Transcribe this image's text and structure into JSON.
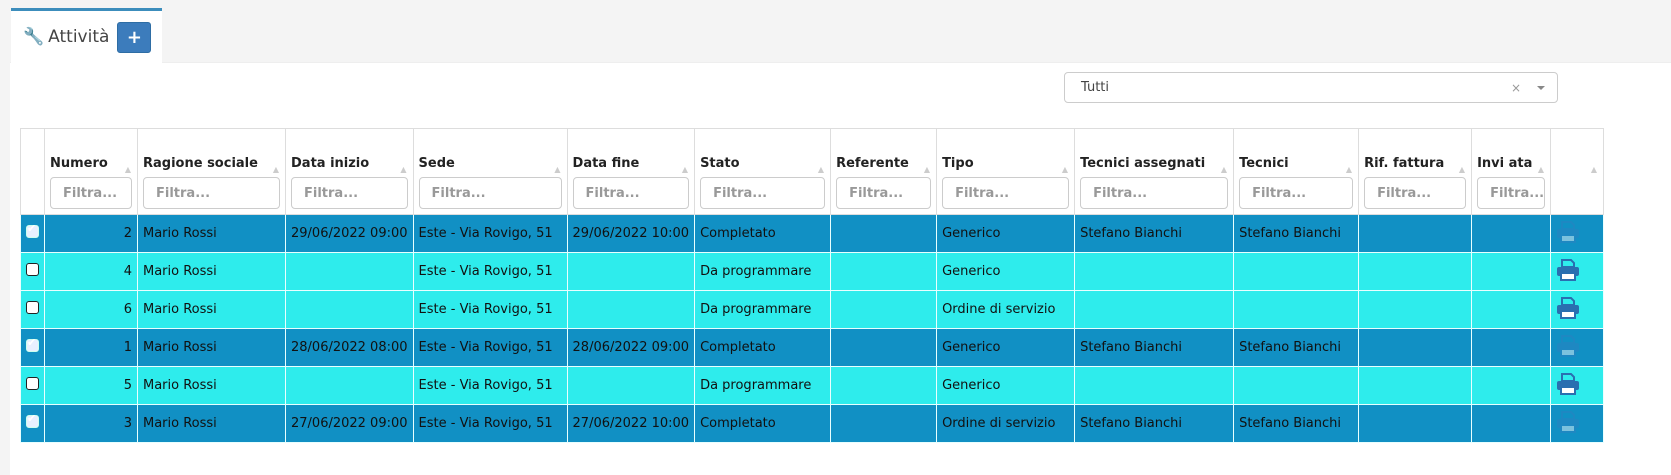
{
  "tab": {
    "title": "Attività",
    "add_label": "+"
  },
  "filter": {
    "value": "Tutti",
    "clear": "×"
  },
  "table": {
    "placeholder": "Filtra...",
    "columns": [
      "Numero",
      "Ragione sociale",
      "Data inizio",
      "Sede",
      "Data fine",
      "Stato",
      "Referente",
      "Tipo",
      "Tecnici assegnati",
      "Tecnici",
      "Rif. fattura",
      "Invi ata"
    ],
    "rows": [
      {
        "selected": true,
        "cells": [
          "2",
          "Mario Rossi",
          "29/06/2022 09:00",
          "Este - Via Rovigo, 51",
          "29/06/2022 10:00",
          "Completato",
          "",
          "Generico",
          "Stefano Bianchi",
          "Stefano Bianchi",
          "",
          ""
        ]
      },
      {
        "selected": false,
        "cells": [
          "4",
          "Mario Rossi",
          "",
          "Este - Via Rovigo, 51",
          "",
          "Da programmare",
          "",
          "Generico",
          "",
          "",
          "",
          ""
        ]
      },
      {
        "selected": false,
        "cells": [
          "6",
          "Mario Rossi",
          "",
          "Este - Via Rovigo, 51",
          "",
          "Da programmare",
          "",
          "Ordine di servizio",
          "",
          "",
          "",
          ""
        ]
      },
      {
        "selected": true,
        "cells": [
          "1",
          "Mario Rossi",
          "28/06/2022 08:00",
          "Este - Via Rovigo, 51",
          "28/06/2022 09:00",
          "Completato",
          "",
          "Generico",
          "Stefano Bianchi",
          "Stefano Bianchi",
          "",
          ""
        ]
      },
      {
        "selected": false,
        "cells": [
          "5",
          "Mario Rossi",
          "",
          "Este - Via Rovigo, 51",
          "",
          "Da programmare",
          "",
          "Generico",
          "",
          "",
          "",
          ""
        ]
      },
      {
        "selected": true,
        "cells": [
          "3",
          "Mario Rossi",
          "27/06/2022 09:00",
          "Este - Via Rovigo, 51",
          "27/06/2022 10:00",
          "Completato",
          "",
          "Ordine di servizio",
          "Stefano Bianchi",
          "Stefano Bianchi",
          "",
          ""
        ]
      }
    ]
  },
  "colors": {
    "selected_row": "#1190c4",
    "row": "#2eecec",
    "accent": "#3c8dbc"
  }
}
